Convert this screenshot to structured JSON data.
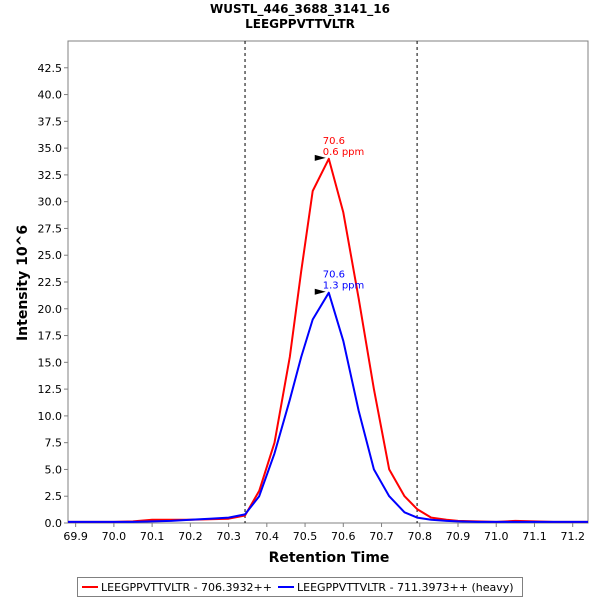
{
  "chart_data": {
    "type": "line",
    "title": "WUSTL_446_3688_3141_16",
    "subtitle": "LEEGPPVTTVLTR",
    "xlabel": "Retention Time",
    "ylabel": "Intensity 10^6",
    "xlim": [
      69.88,
      71.24
    ],
    "ylim": [
      0,
      45
    ],
    "x_ticks": [
      "69.9",
      "70.0",
      "70.1",
      "70.2",
      "70.3",
      "70.4",
      "70.5",
      "70.6",
      "70.7",
      "70.8",
      "70.9",
      "71.0",
      "71.1",
      "71.2"
    ],
    "y_ticks": [
      "0.0",
      "2.5",
      "5.0",
      "7.5",
      "10.0",
      "12.5",
      "15.0",
      "17.5",
      "20.0",
      "22.5",
      "25.0",
      "27.5",
      "30.0",
      "32.5",
      "35.0",
      "37.5",
      "40.0",
      "42.5"
    ],
    "boundaries": [
      70.343,
      70.793
    ],
    "series": [
      {
        "name": "LEEGPPVTTVLTR - 706.3932++",
        "color": "#ff0000",
        "x": [
          69.88,
          70.0,
          70.05,
          70.1,
          70.15,
          70.2,
          70.25,
          70.3,
          70.343,
          70.38,
          70.42,
          70.46,
          70.49,
          70.52,
          70.562,
          70.6,
          70.64,
          70.68,
          70.72,
          70.76,
          70.793,
          70.83,
          70.87,
          70.9,
          70.95,
          71.0,
          71.05,
          71.1,
          71.15,
          71.24
        ],
        "values": [
          0.1,
          0.1,
          0.15,
          0.3,
          0.3,
          0.3,
          0.35,
          0.4,
          0.7,
          3.0,
          7.5,
          15.5,
          23.5,
          31.0,
          34.0,
          29.0,
          21.0,
          12.5,
          5.0,
          2.5,
          1.3,
          0.5,
          0.3,
          0.2,
          0.15,
          0.1,
          0.2,
          0.15,
          0.1,
          0.1
        ],
        "peak_rt": "70.6",
        "peak_ppm": "0.6 ppm"
      },
      {
        "name": "LEEGPPVTTVLTR - 711.3973++ (heavy)",
        "color": "#0000ff",
        "x": [
          69.88,
          70.0,
          70.05,
          70.1,
          70.15,
          70.2,
          70.25,
          70.3,
          70.343,
          70.38,
          70.42,
          70.46,
          70.49,
          70.52,
          70.562,
          70.6,
          70.64,
          70.68,
          70.72,
          70.76,
          70.793,
          70.83,
          70.87,
          70.9,
          70.95,
          71.0,
          71.05,
          71.1,
          71.15,
          71.24
        ],
        "values": [
          0.1,
          0.1,
          0.1,
          0.15,
          0.2,
          0.3,
          0.4,
          0.5,
          0.8,
          2.5,
          6.5,
          11.5,
          15.5,
          19.0,
          21.5,
          17.0,
          10.5,
          5.0,
          2.5,
          1.0,
          0.5,
          0.3,
          0.2,
          0.15,
          0.1,
          0.1,
          0.1,
          0.1,
          0.1,
          0.1
        ],
        "peak_rt": "70.6",
        "peak_ppm": "1.3 ppm"
      }
    ],
    "legend_position": "bottom",
    "grid": false
  }
}
